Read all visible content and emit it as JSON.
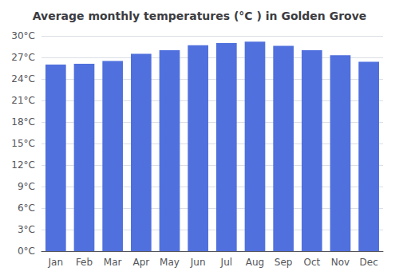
{
  "chart_data": {
    "type": "bar",
    "title": "Average monthly temperatures (°C ) in Golden Grove",
    "categories": [
      "Jan",
      "Feb",
      "Mar",
      "Apr",
      "May",
      "Jun",
      "Jul",
      "Aug",
      "Sep",
      "Oct",
      "Nov",
      "Dec"
    ],
    "values": [
      26.0,
      26.1,
      26.5,
      27.5,
      28.0,
      28.7,
      29.0,
      29.2,
      28.6,
      28.0,
      27.3,
      26.4
    ],
    "ylim": [
      0,
      30
    ],
    "yticks": [
      {
        "value": 0,
        "label": "0°C"
      },
      {
        "value": 3,
        "label": "3°C"
      },
      {
        "value": 6,
        "label": "6°C"
      },
      {
        "value": 9,
        "label": "9°C"
      },
      {
        "value": 12,
        "label": "12°C"
      },
      {
        "value": 15,
        "label": "15°C"
      },
      {
        "value": 18,
        "label": "18°C"
      },
      {
        "value": 21,
        "label": "21°C"
      },
      {
        "value": 24,
        "label": "24°C"
      },
      {
        "value": 27,
        "label": "27°C"
      },
      {
        "value": 30,
        "label": "30°C"
      }
    ],
    "grid": true
  }
}
